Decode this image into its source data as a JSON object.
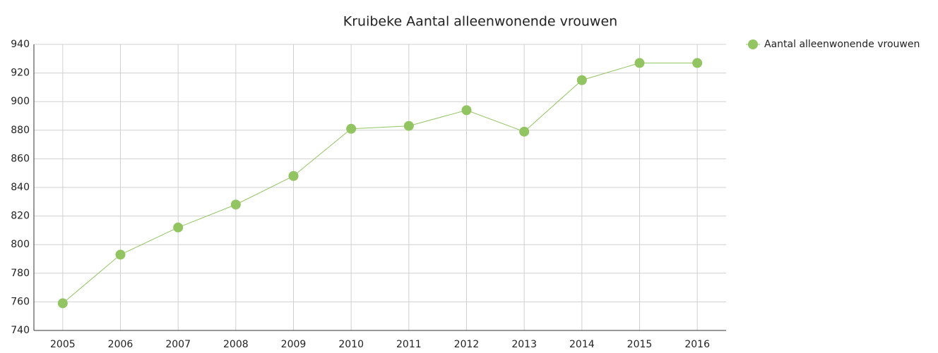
{
  "chart_data": {
    "type": "line",
    "title": "Kruibeke  Aantal alleenwonende vrouwen",
    "categories": [
      "2005",
      "2006",
      "2007",
      "2008",
      "2009",
      "2010",
      "2011",
      "2012",
      "2013",
      "2014",
      "2015",
      "2016"
    ],
    "series": [
      {
        "name": "Aantal alleenwonende vrouwen",
        "color": "#92c462",
        "values": [
          759,
          793,
          812,
          828,
          848,
          881,
          883,
          894,
          879,
          915,
          927,
          927
        ]
      }
    ],
    "ylim": [
      740,
      940
    ],
    "yticks": [
      740,
      760,
      780,
      800,
      820,
      840,
      860,
      880,
      900,
      920,
      940
    ],
    "grid": true,
    "legend": "right"
  }
}
